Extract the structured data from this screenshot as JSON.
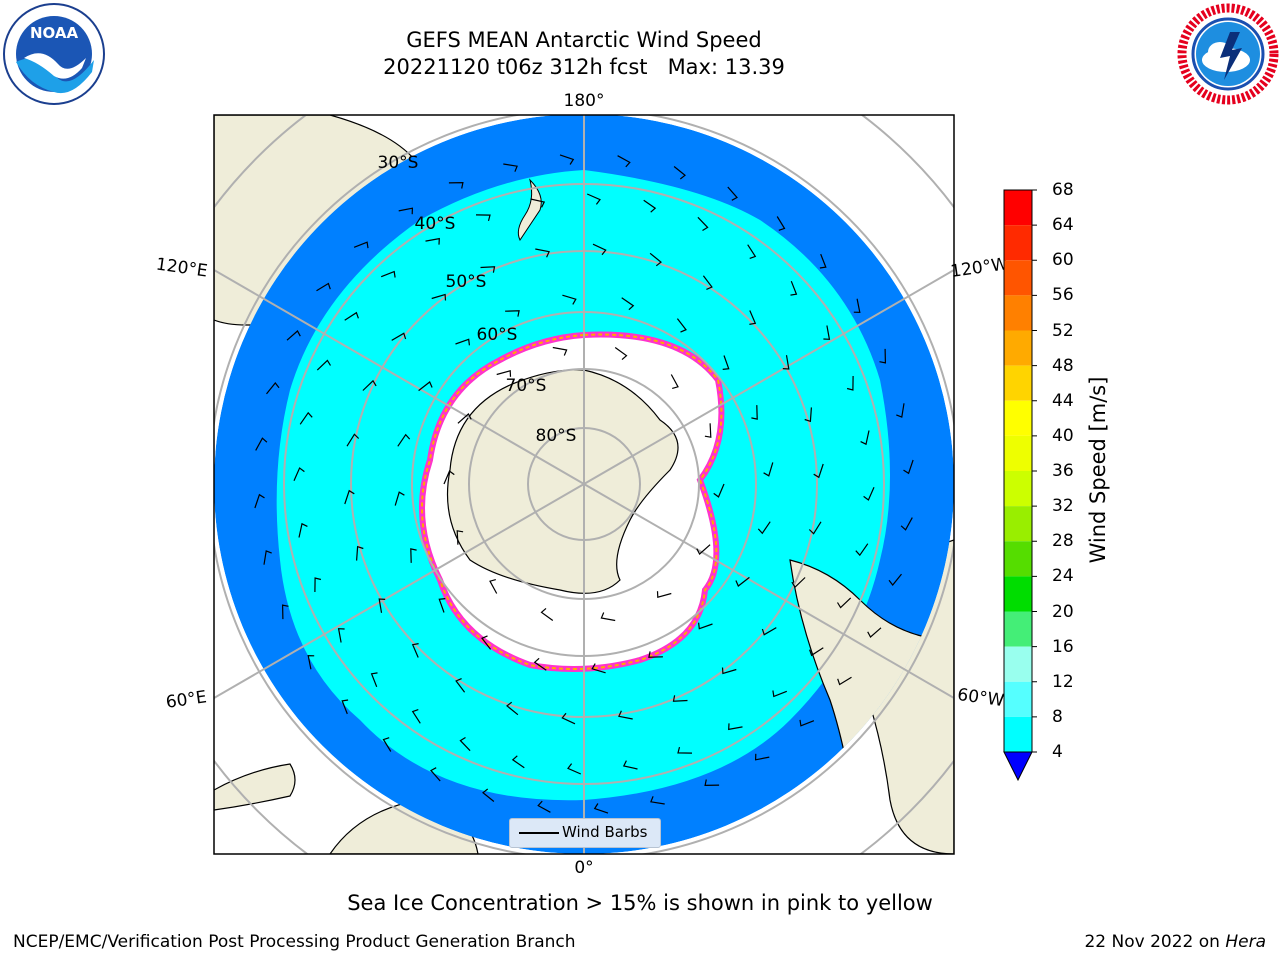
{
  "header": {
    "title_line1": "GEFS MEAN Antarctic Wind Speed",
    "title_line2": "20221120 t06z 312h fcst   Max: 13.39"
  },
  "logos": {
    "left": {
      "icon": "noaa-logo-icon",
      "text": "NOAA"
    },
    "right": {
      "icon": "nws-logo-icon",
      "text": "NATIONAL WEATHER SERVICE"
    }
  },
  "map": {
    "projection": "south-polar-stereographic",
    "longitude_labels": [
      "180°",
      "120°E",
      "120°W",
      "60°E",
      "60°W",
      "0°"
    ],
    "latitude_labels": [
      "30°S",
      "40°S",
      "50°S",
      "60°S",
      "70°S",
      "80°S"
    ],
    "legend_label": "Wind Barbs"
  },
  "colorbar": {
    "label": "Wind Speed [m/s]",
    "ticks": [
      "68",
      "64",
      "60",
      "56",
      "52",
      "48",
      "44",
      "40",
      "36",
      "32",
      "28",
      "24",
      "20",
      "16",
      "12",
      "8",
      "4"
    ],
    "colors_top_to_bottom": [
      "#ff0000",
      "#ff2a00",
      "#ff5500",
      "#ff8000",
      "#ffaa00",
      "#ffd400",
      "#ffff00",
      "#eeff00",
      "#ccff00",
      "#99ee00",
      "#55dd00",
      "#00dd00",
      "#44ee77",
      "#99ffee",
      "#55ffff",
      "#00ffff",
      "#0080ff"
    ],
    "extend_color": "#0000ff"
  },
  "note": "Sea Ice Concentration > 15% is shown in pink to yellow",
  "footer": {
    "left": "NCEP/EMC/Verification Post Processing Product Generation Branch",
    "right_date": "22 Nov 2022 on ",
    "right_host": "Hera"
  },
  "colors": {
    "ocean_low": "#0080ff",
    "ocean_mid": "#00ffff",
    "land": "#efedd9",
    "sea_ice_edge": "#ff33cc"
  }
}
